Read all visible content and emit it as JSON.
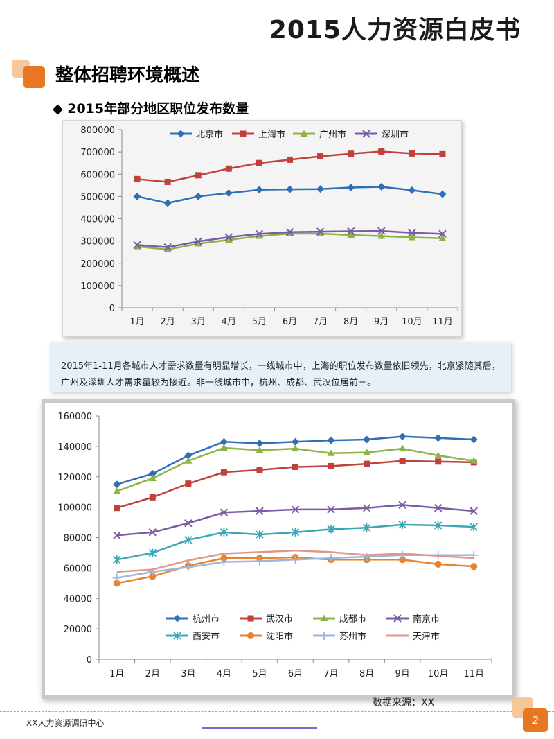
{
  "header": {
    "title": "2015人力资源白皮书"
  },
  "section": {
    "title": "整体招聘环境概述",
    "subtitle": "◆ 2015年部分地区职位发布数量"
  },
  "note": {
    "text": "2015年1-11月各城市人才需求数量有明显增长，一线城市中，上海的职位发布数量依旧领先，北京紧随其后，广州及深圳人才需求量较为接近。非一线城市中，杭州、成都、武汉位居前三。"
  },
  "source": {
    "text": "数据来源：XX"
  },
  "footer": {
    "org": "XX人力资源调研中心",
    "page": "2"
  },
  "chart_data": [
    {
      "type": "line",
      "title": "",
      "xlabel": "",
      "ylabel": "",
      "categories": [
        "1月",
        "2月",
        "3月",
        "4月",
        "5月",
        "6月",
        "7月",
        "8月",
        "9月",
        "10月",
        "11月"
      ],
      "ylim": [
        0,
        800000
      ],
      "yticks": [
        "0",
        "100000",
        "200000",
        "300000",
        "400000",
        "500000",
        "600000",
        "700000",
        "800000"
      ],
      "grid": false,
      "legend": "top",
      "series": [
        {
          "name": "北京市",
          "color": "#2e6fb5",
          "marker": "diamond",
          "values": [
            500000,
            470000,
            500000,
            515000,
            530000,
            532000,
            533000,
            540000,
            543000,
            528000,
            510000
          ]
        },
        {
          "name": "上海市",
          "color": "#c0403c",
          "marker": "square",
          "values": [
            578000,
            565000,
            595000,
            625000,
            650000,
            665000,
            680000,
            692000,
            702000,
            693000,
            690000
          ]
        },
        {
          "name": "广州市",
          "color": "#8db442",
          "marker": "triangle",
          "values": [
            275000,
            262000,
            288000,
            305000,
            322000,
            333000,
            333000,
            327000,
            322000,
            316000,
            312000
          ]
        },
        {
          "name": "深圳市",
          "color": "#7b5aa6",
          "marker": "x",
          "values": [
            282000,
            272000,
            298000,
            317000,
            332000,
            340000,
            342000,
            344000,
            345000,
            337000,
            332000
          ]
        }
      ]
    },
    {
      "type": "line",
      "title": "",
      "xlabel": "",
      "ylabel": "",
      "categories": [
        "1月",
        "2月",
        "3月",
        "4月",
        "5月",
        "6月",
        "7月",
        "8月",
        "9月",
        "10月",
        "11月"
      ],
      "ylim": [
        0,
        160000
      ],
      "yticks": [
        "0",
        "20000",
        "40000",
        "60000",
        "80000",
        "100000",
        "120000",
        "140000",
        "160000"
      ],
      "grid": false,
      "legend": "bottom-inside",
      "series": [
        {
          "name": "杭州市",
          "color": "#2e6fb5",
          "marker": "diamond",
          "values": [
            115000,
            122000,
            134000,
            143000,
            142000,
            143000,
            144000,
            144500,
            146500,
            145500,
            144500
          ]
        },
        {
          "name": "武汉市",
          "color": "#c0403c",
          "marker": "square",
          "values": [
            99500,
            106500,
            115500,
            123000,
            124500,
            126500,
            127000,
            128500,
            130500,
            130000,
            129500
          ]
        },
        {
          "name": "成都市",
          "color": "#8db442",
          "marker": "triangle",
          "values": [
            110500,
            119000,
            130500,
            139000,
            137500,
            138500,
            135500,
            136000,
            138500,
            134000,
            130500
          ]
        },
        {
          "name": "南京市",
          "color": "#7b5aa6",
          "marker": "x",
          "values": [
            81500,
            83500,
            89500,
            96500,
            97500,
            98500,
            98500,
            99500,
            101500,
            99500,
            97500
          ]
        },
        {
          "name": "西安市",
          "color": "#3aa7b5",
          "marker": "asterisk",
          "values": [
            65500,
            70000,
            78500,
            83500,
            82000,
            83500,
            85500,
            86500,
            88500,
            88000,
            87000
          ]
        },
        {
          "name": "沈阳市",
          "color": "#e8832a",
          "marker": "circle",
          "values": [
            50000,
            54500,
            61500,
            66500,
            66500,
            67000,
            65500,
            65500,
            65500,
            62500,
            61000
          ]
        },
        {
          "name": "苏州市",
          "color": "#9fb6dc",
          "marker": "plus",
          "values": [
            53500,
            57500,
            60500,
            64000,
            64500,
            65500,
            66500,
            67500,
            68500,
            68500,
            68500
          ]
        },
        {
          "name": "天津市",
          "color": "#e0968d",
          "marker": "none",
          "values": [
            57500,
            59000,
            65000,
            69500,
            70500,
            71500,
            70500,
            68500,
            69500,
            68000,
            66500
          ]
        }
      ]
    }
  ]
}
